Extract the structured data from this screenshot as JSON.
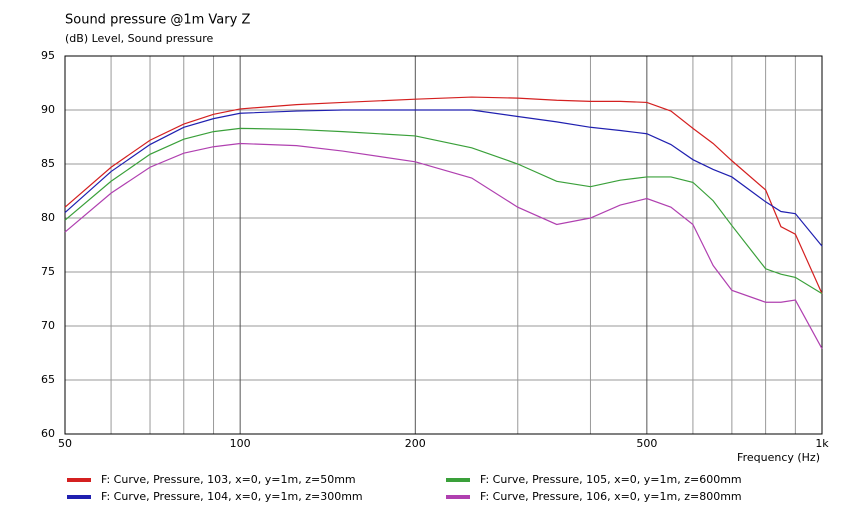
{
  "chart_data": {
    "type": "line",
    "title": "Sound pressure @1m Vary Z",
    "subtitle": "(dB)  Level, Sound pressure",
    "x_label": "Frequency  (Hz)",
    "x_scale": "log",
    "grid": true,
    "x": [
      50,
      60,
      70,
      80,
      90,
      100,
      125,
      150,
      200,
      250,
      300,
      350,
      400,
      450,
      500,
      550,
      600,
      650,
      700,
      800,
      850,
      900,
      1000
    ],
    "series": [
      {
        "name": "F: Curve, Pressure, 103, x=0, y=1m, z=50mm",
        "color": "#d42020",
        "values": [
          81.0,
          84.7,
          87.2,
          88.7,
          89.6,
          90.1,
          90.5,
          90.7,
          91.0,
          91.2,
          91.1,
          90.9,
          90.8,
          90.8,
          90.7,
          89.9,
          88.3,
          86.9,
          85.3,
          82.6,
          79.2,
          78.5,
          73.0
        ]
      },
      {
        "name": "F: Curve, Pressure, 104, x=0, y=1m, z=300mm",
        "color": "#2020b0",
        "values": [
          80.5,
          84.3,
          86.8,
          88.4,
          89.2,
          89.7,
          89.9,
          90.0,
          90.0,
          90.0,
          89.4,
          88.9,
          88.4,
          88.1,
          87.8,
          86.8,
          85.4,
          84.5,
          83.8,
          81.5,
          80.6,
          80.4,
          77.4
        ]
      },
      {
        "name": "F: Curve, Pressure, 105, x=0, y=1m, z=600mm",
        "color": "#3aa03a",
        "values": [
          79.8,
          83.4,
          85.9,
          87.3,
          88.0,
          88.3,
          88.2,
          88.0,
          87.6,
          86.5,
          85.0,
          83.4,
          82.9,
          83.5,
          83.8,
          83.8,
          83.3,
          81.6,
          79.3,
          75.3,
          74.8,
          74.5,
          73.0
        ]
      },
      {
        "name": "F: Curve, Pressure, 106, x=0, y=1m, z=800mm",
        "color": "#b040b0",
        "values": [
          78.7,
          82.3,
          84.7,
          86.0,
          86.6,
          86.9,
          86.7,
          86.2,
          85.2,
          83.7,
          81.0,
          79.4,
          80.0,
          81.2,
          81.8,
          81.0,
          79.4,
          75.6,
          73.3,
          72.2,
          72.2,
          72.4,
          67.9
        ]
      }
    ],
    "xlim": [
      50,
      1000
    ],
    "xticks": [
      50,
      100,
      200,
      500,
      {
        "value": 1000,
        "label": "1k"
      }
    ],
    "xminorticks": [
      60,
      70,
      80,
      90,
      300,
      400,
      600,
      700,
      800,
      900
    ],
    "ylim": [
      60,
      95
    ],
    "yticks": [
      60,
      65,
      70,
      75,
      80,
      85,
      90,
      95
    ]
  }
}
